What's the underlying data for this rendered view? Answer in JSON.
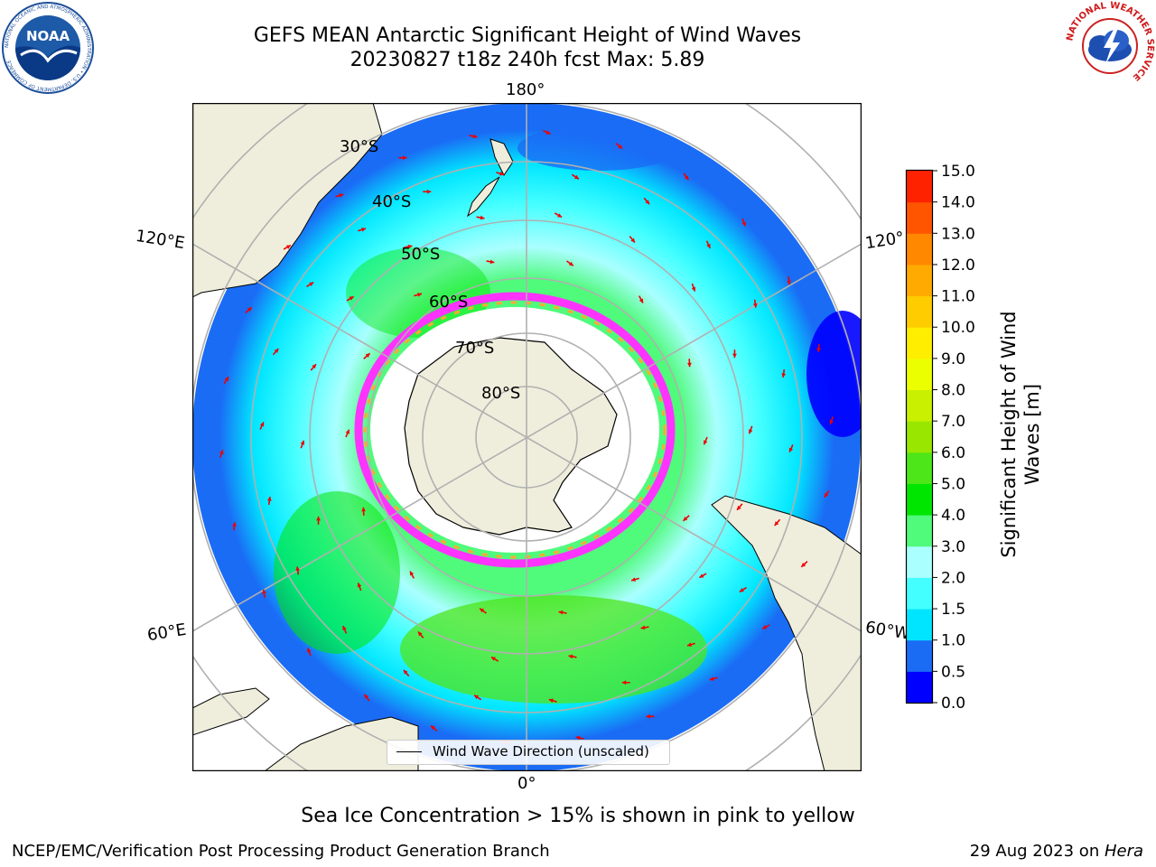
{
  "header": {
    "title_line1": "GEFS MEAN Antarctic Significant Height of Wind Waves",
    "title_line2": "20230827 t18z 240h fcst   Max: 5.89",
    "noaa_logo_text": "NOAA",
    "noaa_ring_text": "NATIONAL OCEANIC AND ATMOSPHERIC ADMINISTRATION • U.S. DEPARTMENT OF COMMERCE",
    "nws_ring_text": "NATIONAL WEATHER SERVICE"
  },
  "map": {
    "projection": "south-polar stereographic",
    "longitude_labels": [
      "180°",
      "120°E",
      "120°",
      "60°E",
      "60°W",
      "0°"
    ],
    "latitude_labels": [
      "30°S",
      "40°S",
      "50°S",
      "60°S",
      "70°S",
      "80°S"
    ],
    "legend_label": "Wind Wave Direction (unscaled)",
    "arrow_color": "#ee0000",
    "land_color": "#efeedc",
    "ice_edge_colors": [
      "#ff33ff",
      "#ffaa33",
      "#ffee55"
    ]
  },
  "colorbar": {
    "title": "Significant Height of Wind Waves [m]",
    "ticks": [
      "0.0",
      "0.5",
      "1.0",
      "1.5",
      "2.0",
      "3.0",
      "4.0",
      "5.0",
      "6.0",
      "7.0",
      "8.0",
      "9.0",
      "10.0",
      "11.0",
      "12.0",
      "13.0",
      "14.0",
      "15.0"
    ],
    "colors": [
      "#0000ff",
      "#1a6cf5",
      "#00e5ff",
      "#44ffff",
      "#aaffff",
      "#50fa7b",
      "#00e600",
      "#4de619",
      "#99e600",
      "#c8f000",
      "#ecff00",
      "#ffee00",
      "#ffcc00",
      "#ffaa00",
      "#ff8800",
      "#ff5500",
      "#ff2200"
    ]
  },
  "footer": {
    "caption": "Sea Ice Concentration > 15% is shown in pink to yellow",
    "left": "NCEP/EMC/Verification Post Processing Product Generation Branch",
    "right_date": "29 Aug 2023 on ",
    "right_host": "Hera"
  }
}
